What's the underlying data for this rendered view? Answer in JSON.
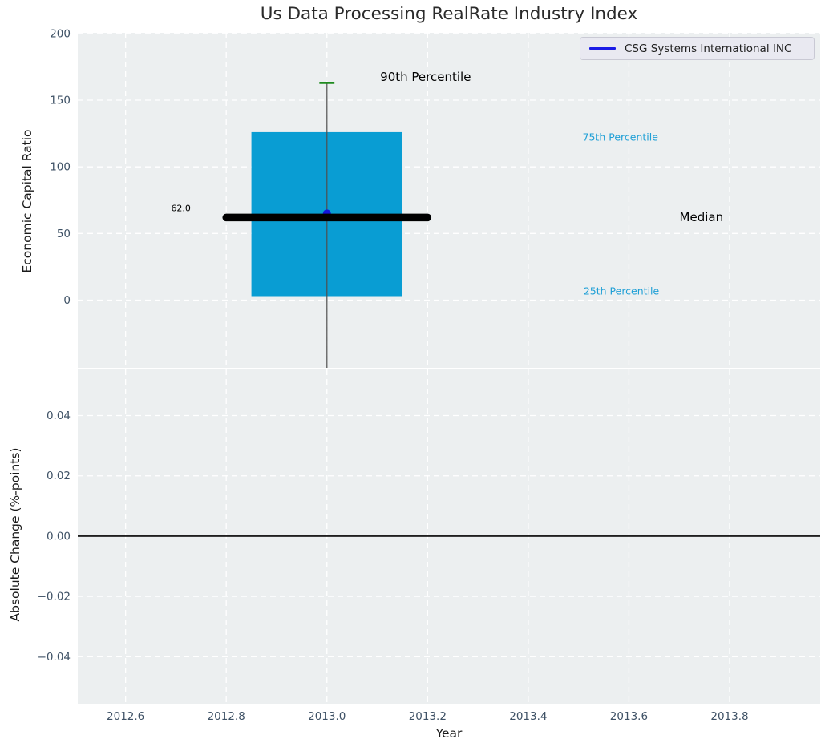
{
  "title": "Us Data Processing RealRate Industry Index",
  "legend": {
    "label": "CSG Systems International INC",
    "line_color": "#1a1ae6"
  },
  "colors": {
    "plot_bg": "#eceff0",
    "grid": "#ffffff",
    "tick": "#3f5266",
    "box": "#099dd3",
    "whisker": "#4d4d4d",
    "cap_green": "#1f8b1f",
    "median": "#000000",
    "company": "#1414dc",
    "zero_line": "#000000",
    "percentile_text": "#1e9fd6",
    "annotation_text": "#000000"
  },
  "chart_data": [
    {
      "type": "box",
      "axis": "top",
      "ylabel": "Economic Capital Ratio",
      "ylim": [
        -50.8,
        200.5
      ],
      "xlim": [
        2012.505,
        2013.98
      ],
      "grid": true,
      "yticks": [
        {
          "v": 0,
          "label": "0"
        },
        {
          "v": 50,
          "label": "50"
        },
        {
          "v": 100,
          "label": "100"
        },
        {
          "v": 150,
          "label": "150"
        },
        {
          "v": 200,
          "label": "200"
        }
      ],
      "box": {
        "x": 2013.0,
        "q1": 3,
        "median": 62.0,
        "q3": 126,
        "p90": 163,
        "whisker_low_clipped": true,
        "box_halfwidth": 0.15,
        "median_halfspan": 0.2,
        "cap_halfwidth": 0.015
      },
      "company_point": {
        "name": "CSG Systems International INC",
        "x": 2013.0,
        "y": 65
      },
      "annotations": [
        {
          "text": "62.0",
          "x": 2012.71,
          "y": 69,
          "size": 11,
          "color": "#000000"
        },
        {
          "text": "90th Percentile",
          "x": 2013.196,
          "y": 167.5,
          "size": 15,
          "color": "#000000"
        },
        {
          "text": "75th Percentile",
          "x": 2013.583,
          "y": 122.5,
          "size": 12.5,
          "color": "#1e9fd6"
        },
        {
          "text": "Median",
          "x": 2013.744,
          "y": 62.5,
          "size": 15,
          "color": "#000000"
        },
        {
          "text": "25th Percentile",
          "x": 2013.585,
          "y": 7.2,
          "size": 12.5,
          "color": "#1e9fd6"
        }
      ]
    },
    {
      "type": "line",
      "axis": "bottom",
      "ylabel": "Absolute Change (%-points)",
      "xlabel": "Year",
      "ylim": [
        -0.0556,
        0.0553
      ],
      "xlim": [
        2012.505,
        2013.98
      ],
      "grid": true,
      "zero_line": true,
      "series": [],
      "yticks": [
        {
          "v": 0.04,
          "label": "0.04"
        },
        {
          "v": 0.02,
          "label": "0.02"
        },
        {
          "v": 0.0,
          "label": "0.00"
        },
        {
          "v": -0.02,
          "label": "−0.02"
        },
        {
          "v": -0.04,
          "label": "−0.04"
        }
      ],
      "xticks": [
        {
          "v": 2012.6,
          "label": "2012.6"
        },
        {
          "v": 2012.8,
          "label": "2012.8"
        },
        {
          "v": 2013.0,
          "label": "2013.0"
        },
        {
          "v": 2013.2,
          "label": "2013.2"
        },
        {
          "v": 2013.4,
          "label": "2013.4"
        },
        {
          "v": 2013.6,
          "label": "2013.6"
        },
        {
          "v": 2013.8,
          "label": "2013.8"
        }
      ]
    }
  ]
}
